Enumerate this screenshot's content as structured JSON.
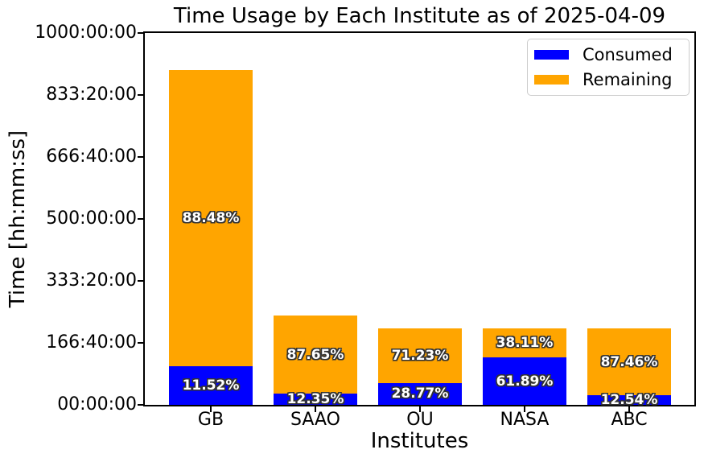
{
  "figure": {
    "title": "Time Usage by Each Institute as of 2025-04-09",
    "xlabel": "Institutes",
    "ylabel": "Time [hh:mm:ss]"
  },
  "legend": {
    "entries": [
      {
        "label": "Consumed",
        "color": "#0000ff"
      },
      {
        "label": "Remaining",
        "color": "#ffa500"
      }
    ]
  },
  "chart_data": {
    "type": "bar",
    "stacked": true,
    "title": "Time Usage by Each Institute as of 2025-04-09",
    "xlabel": "Institutes",
    "ylabel": "Time [hh:mm:ss]",
    "categories": [
      "GB",
      "SAAO",
      "OU",
      "NASA",
      "ABC"
    ],
    "unit": "hours",
    "ylim_hours": [
      0,
      1000
    ],
    "ytick_labels": [
      "00:00:00",
      "166:40:00",
      "333:20:00",
      "500:00:00",
      "666:40:00",
      "833:20:00",
      "1000:00:00"
    ],
    "total_hours": [
      900,
      240,
      205,
      205,
      205
    ],
    "series": [
      {
        "name": "Consumed",
        "color": "#0000ff",
        "values_hours": [
          103.68,
          29.64,
          58.98,
          126.87,
          25.71
        ],
        "pct_labels": [
          "11.52%",
          "12.35%",
          "28.77%",
          "61.89%",
          "12.54%"
        ]
      },
      {
        "name": "Remaining",
        "color": "#ffa500",
        "values_hours": [
          796.32,
          210.36,
          146.02,
          78.13,
          179.29
        ],
        "pct_labels": [
          "88.48%",
          "87.65%",
          "71.23%",
          "38.11%",
          "87.46%"
        ]
      }
    ],
    "legend_position": "upper right",
    "grid": false,
    "label_text_color": "#ffffff",
    "label_outline_color": "#333333"
  }
}
